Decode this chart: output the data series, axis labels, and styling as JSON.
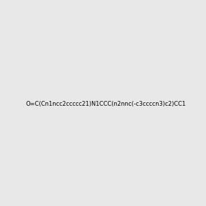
{
  "smiles": "O=C(Cn1ncc2ccccc21)N1CCC(n2nnc(-c3ccccn3)c2)CC1",
  "title": "",
  "background_color": "#e8e8e8",
  "figsize": [
    3.0,
    3.0
  ],
  "dpi": 100
}
